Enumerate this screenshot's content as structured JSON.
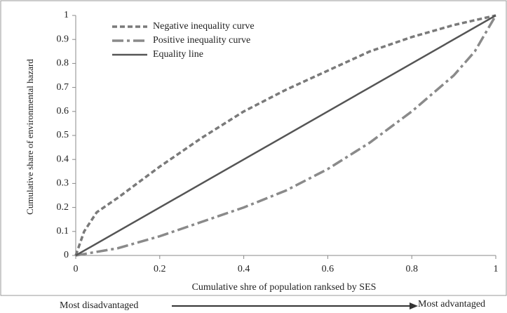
{
  "chart_data": {
    "type": "line",
    "x_label": "Cumulative  shre of population  ranksed by SES",
    "y_label": "Cumulative  share of environmental  hazard",
    "annotations": [
      "Most disadvantaged",
      "Most advantaged"
    ],
    "xlim": [
      0,
      1
    ],
    "ylim": [
      0,
      1
    ],
    "xticks": [
      0,
      0.2,
      0.4,
      0.6,
      0.8,
      1
    ],
    "yticks": [
      0,
      0.1,
      0.2,
      0.3,
      0.4,
      0.5,
      0.6,
      0.7,
      0.8,
      0.9,
      1
    ],
    "legend": "top-left",
    "series": [
      {
        "name": "Negative inequality curve",
        "color": "#7a7a7a",
        "style": "dashed",
        "x": [
          0,
          0.02,
          0.05,
          0.1,
          0.2,
          0.3,
          0.4,
          0.5,
          0.6,
          0.7,
          0.8,
          0.9,
          1
        ],
        "values": [
          0,
          0.1,
          0.18,
          0.24,
          0.37,
          0.49,
          0.6,
          0.69,
          0.77,
          0.85,
          0.91,
          0.96,
          1
        ]
      },
      {
        "name": "Positive inequality curve",
        "color": "#8a8a8a",
        "style": "dashdot",
        "x": [
          0,
          0.1,
          0.2,
          0.3,
          0.4,
          0.5,
          0.6,
          0.7,
          0.8,
          0.9,
          0.95,
          1
        ],
        "values": [
          0,
          0.03,
          0.08,
          0.14,
          0.2,
          0.27,
          0.36,
          0.47,
          0.6,
          0.75,
          0.85,
          1
        ]
      },
      {
        "name": "Equality line",
        "color": "#555555",
        "style": "solid",
        "x": [
          0,
          1
        ],
        "values": [
          0,
          1
        ]
      }
    ]
  }
}
